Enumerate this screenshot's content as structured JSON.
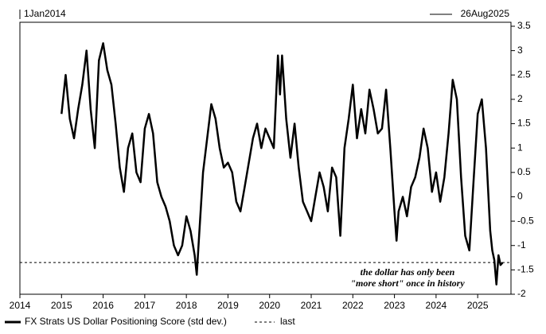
{
  "chart_data": {
    "type": "line",
    "date_range": [
      "1Jan2014",
      "26Aug2025"
    ],
    "x": [
      2015.0,
      2015.1,
      2015.2,
      2015.3,
      2015.4,
      2015.5,
      2015.6,
      2015.7,
      2015.8,
      2015.9,
      2016.0,
      2016.1,
      2016.2,
      2016.3,
      2016.4,
      2016.5,
      2016.6,
      2016.7,
      2016.8,
      2016.9,
      2017.0,
      2017.1,
      2017.2,
      2017.3,
      2017.4,
      2017.5,
      2017.6,
      2017.7,
      2017.8,
      2017.9,
      2018.0,
      2018.1,
      2018.2,
      2018.25,
      2018.3,
      2018.4,
      2018.5,
      2018.6,
      2018.7,
      2018.8,
      2018.9,
      2019.0,
      2019.1,
      2019.2,
      2019.3,
      2019.4,
      2019.5,
      2019.6,
      2019.7,
      2019.8,
      2019.9,
      2020.0,
      2020.1,
      2020.2,
      2020.25,
      2020.3,
      2020.4,
      2020.5,
      2020.6,
      2020.7,
      2020.8,
      2020.9,
      2021.0,
      2021.1,
      2021.2,
      2021.3,
      2021.4,
      2021.5,
      2021.6,
      2021.7,
      2021.8,
      2021.9,
      2022.0,
      2022.1,
      2022.2,
      2022.3,
      2022.4,
      2022.5,
      2022.6,
      2022.7,
      2022.8,
      2022.9,
      2023.0,
      2023.05,
      2023.1,
      2023.2,
      2023.3,
      2023.4,
      2023.5,
      2023.6,
      2023.7,
      2023.8,
      2023.9,
      2024.0,
      2024.1,
      2024.2,
      2024.3,
      2024.4,
      2024.5,
      2024.6,
      2024.7,
      2024.8,
      2024.9,
      2025.0,
      2025.1,
      2025.2,
      2025.3,
      2025.35,
      2025.4,
      2025.45,
      2025.5,
      2025.55,
      2025.6
    ],
    "series": [
      {
        "name": "FX Strats US Dollar Positioning Score (std dev.)",
        "color": "#000000",
        "values": [
          1.7,
          2.5,
          1.6,
          1.2,
          1.8,
          2.3,
          3.0,
          1.8,
          1.0,
          2.8,
          3.15,
          2.6,
          2.3,
          1.5,
          0.6,
          0.1,
          1.0,
          1.3,
          0.5,
          0.3,
          1.4,
          1.7,
          1.3,
          0.3,
          0.0,
          -0.2,
          -0.5,
          -1.0,
          -1.2,
          -1.0,
          -0.4,
          -0.7,
          -1.2,
          -1.6,
          -0.9,
          0.5,
          1.2,
          1.9,
          1.6,
          1.0,
          0.6,
          0.7,
          0.5,
          -0.1,
          -0.3,
          0.2,
          0.7,
          1.2,
          1.5,
          1.0,
          1.4,
          1.2,
          1.0,
          2.9,
          2.1,
          2.9,
          1.6,
          0.8,
          1.5,
          0.6,
          -0.1,
          -0.3,
          -0.5,
          0.0,
          0.5,
          0.2,
          -0.3,
          0.6,
          0.4,
          -0.8,
          1.0,
          1.6,
          2.3,
          1.2,
          1.8,
          1.3,
          2.2,
          1.8,
          1.3,
          1.4,
          2.2,
          1.0,
          -0.3,
          -0.9,
          -0.3,
          0.0,
          -0.4,
          0.2,
          0.4,
          0.8,
          1.4,
          1.0,
          0.1,
          0.5,
          -0.1,
          0.4,
          1.3,
          2.4,
          2.0,
          0.4,
          -0.8,
          -1.1,
          0.3,
          1.7,
          2.0,
          1.0,
          -0.7,
          -1.1,
          -1.3,
          -1.8,
          -1.2,
          -1.4,
          -1.35
        ]
      }
    ],
    "reference_lines": [
      {
        "name": "last",
        "value": -1.35
      }
    ],
    "annotations": [
      "the dollar has only been",
      "\"more short\" once in history"
    ],
    "xlim": [
      2014,
      2025.8
    ],
    "xticks": [
      2014,
      2015,
      2016,
      2017,
      2018,
      2019,
      2020,
      2021,
      2022,
      2023,
      2024,
      2025
    ],
    "ylim": [
      -2,
      3.5
    ],
    "yticks": [
      -2,
      -1.5,
      -1,
      -0.5,
      0,
      0.5,
      1,
      1.5,
      2,
      2.5,
      3,
      3.5
    ],
    "y_axis_side": "right"
  }
}
